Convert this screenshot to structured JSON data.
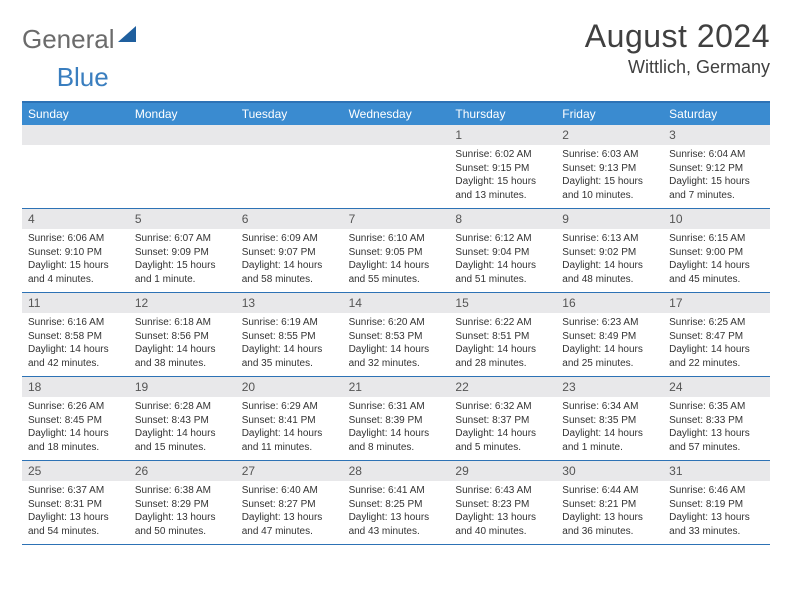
{
  "logo": {
    "word1": "General",
    "word2": "Blue"
  },
  "title": "August 2024",
  "location": "Wittlich, Germany",
  "colors": {
    "header_bar": "#3a8bd0",
    "border": "#2d72b5",
    "daynum_bg": "#e8e8ea",
    "logo_gray": "#6b6b6b",
    "logo_blue": "#3a7ebf",
    "text": "#333333"
  },
  "days_of_week": [
    "Sunday",
    "Monday",
    "Tuesday",
    "Wednesday",
    "Thursday",
    "Friday",
    "Saturday"
  ],
  "weeks": [
    [
      {
        "day": "",
        "lines": [
          "",
          "",
          "",
          ""
        ]
      },
      {
        "day": "",
        "lines": [
          "",
          "",
          "",
          ""
        ]
      },
      {
        "day": "",
        "lines": [
          "",
          "",
          "",
          ""
        ]
      },
      {
        "day": "",
        "lines": [
          "",
          "",
          "",
          ""
        ]
      },
      {
        "day": "1",
        "lines": [
          "Sunrise: 6:02 AM",
          "Sunset: 9:15 PM",
          "Daylight: 15 hours",
          "and 13 minutes."
        ]
      },
      {
        "day": "2",
        "lines": [
          "Sunrise: 6:03 AM",
          "Sunset: 9:13 PM",
          "Daylight: 15 hours",
          "and 10 minutes."
        ]
      },
      {
        "day": "3",
        "lines": [
          "Sunrise: 6:04 AM",
          "Sunset: 9:12 PM",
          "Daylight: 15 hours",
          "and 7 minutes."
        ]
      }
    ],
    [
      {
        "day": "4",
        "lines": [
          "Sunrise: 6:06 AM",
          "Sunset: 9:10 PM",
          "Daylight: 15 hours",
          "and 4 minutes."
        ]
      },
      {
        "day": "5",
        "lines": [
          "Sunrise: 6:07 AM",
          "Sunset: 9:09 PM",
          "Daylight: 15 hours",
          "and 1 minute."
        ]
      },
      {
        "day": "6",
        "lines": [
          "Sunrise: 6:09 AM",
          "Sunset: 9:07 PM",
          "Daylight: 14 hours",
          "and 58 minutes."
        ]
      },
      {
        "day": "7",
        "lines": [
          "Sunrise: 6:10 AM",
          "Sunset: 9:05 PM",
          "Daylight: 14 hours",
          "and 55 minutes."
        ]
      },
      {
        "day": "8",
        "lines": [
          "Sunrise: 6:12 AM",
          "Sunset: 9:04 PM",
          "Daylight: 14 hours",
          "and 51 minutes."
        ]
      },
      {
        "day": "9",
        "lines": [
          "Sunrise: 6:13 AM",
          "Sunset: 9:02 PM",
          "Daylight: 14 hours",
          "and 48 minutes."
        ]
      },
      {
        "day": "10",
        "lines": [
          "Sunrise: 6:15 AM",
          "Sunset: 9:00 PM",
          "Daylight: 14 hours",
          "and 45 minutes."
        ]
      }
    ],
    [
      {
        "day": "11",
        "lines": [
          "Sunrise: 6:16 AM",
          "Sunset: 8:58 PM",
          "Daylight: 14 hours",
          "and 42 minutes."
        ]
      },
      {
        "day": "12",
        "lines": [
          "Sunrise: 6:18 AM",
          "Sunset: 8:56 PM",
          "Daylight: 14 hours",
          "and 38 minutes."
        ]
      },
      {
        "day": "13",
        "lines": [
          "Sunrise: 6:19 AM",
          "Sunset: 8:55 PM",
          "Daylight: 14 hours",
          "and 35 minutes."
        ]
      },
      {
        "day": "14",
        "lines": [
          "Sunrise: 6:20 AM",
          "Sunset: 8:53 PM",
          "Daylight: 14 hours",
          "and 32 minutes."
        ]
      },
      {
        "day": "15",
        "lines": [
          "Sunrise: 6:22 AM",
          "Sunset: 8:51 PM",
          "Daylight: 14 hours",
          "and 28 minutes."
        ]
      },
      {
        "day": "16",
        "lines": [
          "Sunrise: 6:23 AM",
          "Sunset: 8:49 PM",
          "Daylight: 14 hours",
          "and 25 minutes."
        ]
      },
      {
        "day": "17",
        "lines": [
          "Sunrise: 6:25 AM",
          "Sunset: 8:47 PM",
          "Daylight: 14 hours",
          "and 22 minutes."
        ]
      }
    ],
    [
      {
        "day": "18",
        "lines": [
          "Sunrise: 6:26 AM",
          "Sunset: 8:45 PM",
          "Daylight: 14 hours",
          "and 18 minutes."
        ]
      },
      {
        "day": "19",
        "lines": [
          "Sunrise: 6:28 AM",
          "Sunset: 8:43 PM",
          "Daylight: 14 hours",
          "and 15 minutes."
        ]
      },
      {
        "day": "20",
        "lines": [
          "Sunrise: 6:29 AM",
          "Sunset: 8:41 PM",
          "Daylight: 14 hours",
          "and 11 minutes."
        ]
      },
      {
        "day": "21",
        "lines": [
          "Sunrise: 6:31 AM",
          "Sunset: 8:39 PM",
          "Daylight: 14 hours",
          "and 8 minutes."
        ]
      },
      {
        "day": "22",
        "lines": [
          "Sunrise: 6:32 AM",
          "Sunset: 8:37 PM",
          "Daylight: 14 hours",
          "and 5 minutes."
        ]
      },
      {
        "day": "23",
        "lines": [
          "Sunrise: 6:34 AM",
          "Sunset: 8:35 PM",
          "Daylight: 14 hours",
          "and 1 minute."
        ]
      },
      {
        "day": "24",
        "lines": [
          "Sunrise: 6:35 AM",
          "Sunset: 8:33 PM",
          "Daylight: 13 hours",
          "and 57 minutes."
        ]
      }
    ],
    [
      {
        "day": "25",
        "lines": [
          "Sunrise: 6:37 AM",
          "Sunset: 8:31 PM",
          "Daylight: 13 hours",
          "and 54 minutes."
        ]
      },
      {
        "day": "26",
        "lines": [
          "Sunrise: 6:38 AM",
          "Sunset: 8:29 PM",
          "Daylight: 13 hours",
          "and 50 minutes."
        ]
      },
      {
        "day": "27",
        "lines": [
          "Sunrise: 6:40 AM",
          "Sunset: 8:27 PM",
          "Daylight: 13 hours",
          "and 47 minutes."
        ]
      },
      {
        "day": "28",
        "lines": [
          "Sunrise: 6:41 AM",
          "Sunset: 8:25 PM",
          "Daylight: 13 hours",
          "and 43 minutes."
        ]
      },
      {
        "day": "29",
        "lines": [
          "Sunrise: 6:43 AM",
          "Sunset: 8:23 PM",
          "Daylight: 13 hours",
          "and 40 minutes."
        ]
      },
      {
        "day": "30",
        "lines": [
          "Sunrise: 6:44 AM",
          "Sunset: 8:21 PM",
          "Daylight: 13 hours",
          "and 36 minutes."
        ]
      },
      {
        "day": "31",
        "lines": [
          "Sunrise: 6:46 AM",
          "Sunset: 8:19 PM",
          "Daylight: 13 hours",
          "and 33 minutes."
        ]
      }
    ]
  ]
}
